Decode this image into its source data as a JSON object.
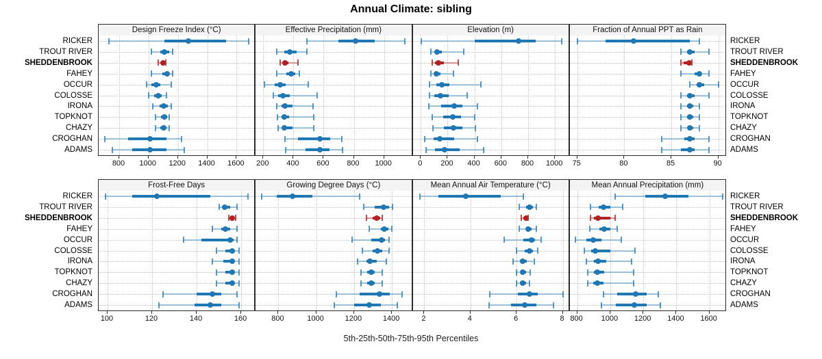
{
  "chart_data": {
    "type": "dot-whisker-trellis",
    "title": "Annual Climate: sibling",
    "footer_label": "5th-25th-50th-75th-95th Percentiles",
    "percentiles": [
      5,
      25,
      50,
      75,
      95
    ],
    "layout_hint": {
      "rows": 2,
      "cols": 4,
      "grid": "dotted",
      "legend": "none",
      "site_labels": "both-sides"
    },
    "sites": [
      "RICKER",
      "TROUT RIVER",
      "SHEDDENBROOK",
      "FAHEY",
      "OCCUR",
      "COLOSSE",
      "IRONA",
      "TOPKNOT",
      "CHAZY",
      "CROGHAN",
      "ADAMS"
    ],
    "highlight_site": "SHEDDENBROOK",
    "colors": {
      "series": "#1f77b4",
      "series_light": "rgba(31,119,180,0.40)",
      "series_cap": "rgba(31,119,180,0.75)",
      "highlight": "#b22222",
      "highlight_light": "rgba(178,34,34,0.45)",
      "highlight_cap": "rgba(178,34,34,0.80)",
      "grid": "#c2c2c2",
      "strip_bg": "#f3f3f3",
      "border": "#2b2b2b"
    },
    "panels": [
      {
        "title": "Design Freeze Index (°C)",
        "row": 0,
        "col": 0,
        "xlim": [
          660,
          1730
        ],
        "ticks": [
          800,
          1000,
          1200,
          1400,
          1600
        ],
        "values": [
          [
            730,
            1110,
            1270,
            1530,
            1680
          ],
          [
            1020,
            1080,
            1110,
            1140,
            1165
          ],
          [
            1065,
            1085,
            1100,
            1110,
            1115
          ],
          [
            1020,
            1095,
            1125,
            1140,
            1165
          ],
          [
            985,
            1020,
            1050,
            1080,
            1155
          ],
          [
            1000,
            1040,
            1065,
            1090,
            1120
          ],
          [
            1030,
            1075,
            1105,
            1130,
            1155
          ],
          [
            1045,
            1085,
            1110,
            1125,
            1140
          ],
          [
            1045,
            1080,
            1105,
            1120,
            1140
          ],
          [
            700,
            860,
            1010,
            1120,
            1225
          ],
          [
            755,
            890,
            1010,
            1120,
            1245
          ]
        ]
      },
      {
        "title": "Effective Precipitation (mm)",
        "row": 0,
        "col": 1,
        "xlim": [
          150,
          1190
        ],
        "ticks": [
          200,
          400,
          600,
          800,
          1000
        ],
        "values": [
          [
            490,
            700,
            810,
            940,
            1140
          ],
          [
            290,
            340,
            375,
            420,
            490
          ],
          [
            310,
            330,
            345,
            365,
            430
          ],
          [
            290,
            355,
            385,
            410,
            440
          ],
          [
            210,
            275,
            310,
            350,
            500
          ],
          [
            265,
            300,
            330,
            375,
            555
          ],
          [
            290,
            320,
            345,
            395,
            530
          ],
          [
            295,
            320,
            340,
            370,
            535
          ],
          [
            300,
            325,
            340,
            395,
            535
          ],
          [
            345,
            430,
            575,
            645,
            720
          ],
          [
            350,
            480,
            575,
            640,
            725
          ]
        ]
      },
      {
        "title": "Elevation (m)",
        "row": 0,
        "col": 2,
        "xlim": [
          -60,
          1110
        ],
        "ticks": [
          0,
          200,
          400,
          600,
          800,
          1000
        ],
        "values": [
          [
            5,
            400,
            730,
            855,
            1050
          ],
          [
            75,
            105,
            120,
            155,
            320
          ],
          [
            85,
            105,
            130,
            175,
            280
          ],
          [
            75,
            100,
            115,
            145,
            245
          ],
          [
            65,
            115,
            155,
            215,
            450
          ],
          [
            65,
            100,
            145,
            210,
            345
          ],
          [
            60,
            150,
            250,
            310,
            420
          ],
          [
            85,
            165,
            240,
            300,
            400
          ],
          [
            90,
            170,
            245,
            310,
            405
          ],
          [
            30,
            95,
            140,
            250,
            420
          ],
          [
            40,
            105,
            175,
            290,
            470
          ]
        ]
      },
      {
        "title": "Fraction of Annual PPT as Rain",
        "row": 0,
        "col": 3,
        "xlim": [
          74.2,
          90.9
        ],
        "ticks": [
          75,
          80,
          85,
          90
        ],
        "values": [
          [
            75,
            78,
            81,
            87,
            88
          ],
          [
            86,
            86.7,
            87,
            87.5,
            89
          ],
          [
            86,
            86.3,
            86.9,
            87,
            87.2
          ],
          [
            86,
            87.5,
            88,
            88.2,
            89
          ],
          [
            87,
            87.7,
            88,
            88.5,
            90
          ],
          [
            86,
            86.7,
            87,
            87.5,
            89
          ],
          [
            86,
            86.7,
            87,
            87.3,
            88
          ],
          [
            86,
            86.7,
            87,
            87.3,
            88
          ],
          [
            86,
            86.8,
            87,
            87.3,
            88
          ],
          [
            84,
            86.4,
            87,
            87.5,
            89
          ],
          [
            84,
            86,
            87,
            87.5,
            89
          ]
        ]
      },
      {
        "title": "Frost-Free Days",
        "row": 1,
        "col": 0,
        "xlim": [
          96,
          166.5
        ],
        "ticks": [
          100,
          120,
          140,
          160
        ],
        "values": [
          [
            99,
            111,
            122,
            146,
            163
          ],
          [
            150,
            151.5,
            152.5,
            155,
            158
          ],
          [
            154.5,
            155.5,
            156,
            156.5,
            157.5
          ],
          [
            147,
            151,
            153,
            155,
            158
          ],
          [
            134,
            142,
            155,
            156.5,
            158
          ],
          [
            149,
            153,
            156,
            157,
            159
          ],
          [
            147,
            152,
            156,
            157,
            159
          ],
          [
            149,
            153,
            156,
            157,
            159
          ],
          [
            149,
            153,
            156,
            157,
            159
          ],
          [
            125,
            140,
            147,
            151,
            158
          ],
          [
            123,
            139,
            146,
            151,
            159
          ]
        ]
      },
      {
        "title": "Growing Degree Days (°C)",
        "row": 1,
        "col": 1,
        "xlim": [
          680,
          1510
        ],
        "ticks": [
          800,
          1000,
          1200,
          1400
        ],
        "values": [
          [
            710,
            790,
            875,
            980,
            1230
          ],
          [
            1250,
            1310,
            1355,
            1385,
            1405
          ],
          [
            1265,
            1300,
            1320,
            1340,
            1350
          ],
          [
            1280,
            1340,
            1360,
            1380,
            1400
          ],
          [
            1190,
            1290,
            1345,
            1365,
            1385
          ],
          [
            1245,
            1300,
            1325,
            1350,
            1385
          ],
          [
            1220,
            1265,
            1285,
            1320,
            1370
          ],
          [
            1235,
            1270,
            1290,
            1310,
            1350
          ],
          [
            1235,
            1270,
            1290,
            1310,
            1350
          ],
          [
            1105,
            1230,
            1335,
            1390,
            1455
          ],
          [
            1095,
            1200,
            1280,
            1340,
            1430
          ]
        ]
      },
      {
        "title": "Mean Annual Air Temperature (°C)",
        "row": 1,
        "col": 2,
        "xlim": [
          1.5,
          8.3
        ],
        "ticks": [
          2,
          4,
          6,
          8
        ],
        "values": [
          [
            1.8,
            2.6,
            3.8,
            5.3,
            6.3
          ],
          [
            6.1,
            6.4,
            6.55,
            6.7,
            6.85
          ],
          [
            6.2,
            6.3,
            6.4,
            6.45,
            6.5
          ],
          [
            6.1,
            6.4,
            6.5,
            6.65,
            6.85
          ],
          [
            5.45,
            6.3,
            6.65,
            6.8,
            7.05
          ],
          [
            6.0,
            6.35,
            6.55,
            6.7,
            6.9
          ],
          [
            5.85,
            6.15,
            6.25,
            6.45,
            6.75
          ],
          [
            6.0,
            6.2,
            6.25,
            6.4,
            6.6
          ],
          [
            6.0,
            6.15,
            6.25,
            6.4,
            6.55
          ],
          [
            4.85,
            6.05,
            6.55,
            6.9,
            8.0
          ],
          [
            4.8,
            5.75,
            6.35,
            6.85,
            7.6
          ]
        ]
      },
      {
        "title": "Mean Annual Precipitation (mm)",
        "row": 1,
        "col": 3,
        "xlim": [
          755,
          1705
        ],
        "ticks": [
          800,
          1000,
          1200,
          1400,
          1600
        ],
        "values": [
          [
            1030,
            1210,
            1330,
            1475,
            1680
          ],
          [
            880,
            930,
            960,
            1000,
            1075
          ],
          [
            880,
            900,
            925,
            1000,
            1030
          ],
          [
            875,
            935,
            965,
            1000,
            1040
          ],
          [
            790,
            855,
            895,
            945,
            1065
          ],
          [
            845,
            885,
            910,
            1000,
            1150
          ],
          [
            855,
            900,
            925,
            975,
            1130
          ],
          [
            865,
            900,
            920,
            965,
            1140
          ],
          [
            865,
            895,
            920,
            960,
            1140
          ],
          [
            960,
            1040,
            1155,
            1220,
            1290
          ],
          [
            945,
            1035,
            1145,
            1220,
            1305
          ]
        ]
      }
    ]
  }
}
